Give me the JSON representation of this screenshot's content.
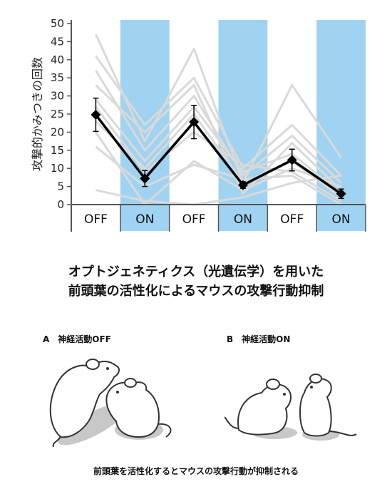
{
  "chart_data": {
    "type": "line",
    "ylabel": "攻撃的かみつきの回数",
    "ylim": [
      0,
      50
    ],
    "yticks": [
      0,
      5,
      10,
      15,
      20,
      25,
      30,
      35,
      40,
      45,
      50
    ],
    "categories": [
      "OFF",
      "ON",
      "OFF",
      "ON",
      "OFF",
      "ON"
    ],
    "highlighted": [
      false,
      true,
      false,
      true,
      false,
      true
    ],
    "colors": {
      "highlight_band": "#9fd3f1",
      "mean_line": "#000000",
      "individual_lines": "#d9d9d9"
    },
    "mean": {
      "values": [
        24.8,
        7.2,
        22.8,
        5.4,
        12.3,
        3.0
      ],
      "error": [
        4.6,
        2.2,
        4.6,
        0.9,
        3.0,
        1.3
      ]
    },
    "individuals": [
      [
        47,
        17.5,
        43,
        6,
        33,
        13
      ],
      [
        41,
        22,
        35,
        10,
        22,
        8
      ],
      [
        37,
        15,
        30,
        8,
        19,
        6
      ],
      [
        33,
        20,
        33,
        3,
        17,
        4
      ],
      [
        29,
        12,
        27,
        9,
        14,
        3
      ],
      [
        23,
        10,
        25,
        6,
        12,
        2
      ],
      [
        20,
        0,
        12,
        4,
        10,
        5
      ],
      [
        16,
        5,
        11,
        7,
        8,
        0
      ],
      [
        4,
        1,
        0,
        2,
        6,
        8
      ],
      [
        27,
        9,
        20,
        11,
        9,
        1
      ]
    ]
  },
  "headline": {
    "line1": "オプトジェネティクス（光遺伝学）を用いた",
    "line2": "前頭葉の活性化によるマウスの攻撃行動抑制"
  },
  "panels": {
    "a_label": "A　神経活動OFF",
    "b_label": "B　神経活動ON"
  },
  "caption": "前頭葉を活性化するとマウスの攻撃行動が抑制される"
}
